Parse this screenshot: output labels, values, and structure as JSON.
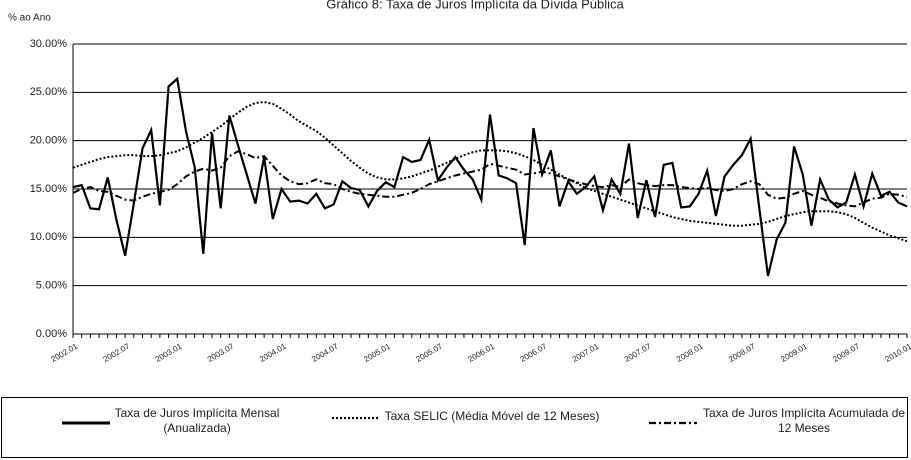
{
  "chart_data": {
    "type": "line",
    "title": "Gráfico 8: Taxa de Juros Implícita da Dívida Pública",
    "y_label": "% ao Ano",
    "categories": [
      "2002.01",
      null,
      null,
      null,
      null,
      null,
      "2002.07",
      null,
      null,
      null,
      null,
      null,
      "2003.01",
      null,
      null,
      null,
      null,
      null,
      "2003.07",
      null,
      null,
      null,
      null,
      null,
      "2004.01",
      null,
      null,
      null,
      null,
      null,
      "2004.07",
      null,
      null,
      null,
      null,
      null,
      "2005.01",
      null,
      null,
      null,
      null,
      null,
      "2005.07",
      null,
      null,
      null,
      null,
      null,
      "2006.01",
      null,
      null,
      null,
      null,
      null,
      "2006.07",
      null,
      null,
      null,
      null,
      null,
      "2007.01",
      null,
      null,
      null,
      null,
      null,
      "2007.07",
      null,
      null,
      null,
      null,
      null,
      "2008.01",
      null,
      null,
      null,
      null,
      null,
      "2008.07",
      null,
      null,
      null,
      null,
      null,
      "2009.01",
      null,
      null,
      null,
      null,
      null,
      "2009.07",
      null,
      null,
      null,
      null,
      null,
      "2010.01"
    ],
    "series": [
      {
        "name": "Taxa de Juros Implícita Mensal (Anualizada)",
        "color": "#000000",
        "style": "solid",
        "values": [
          15.2,
          15.4,
          13.0,
          12.9,
          16.2,
          11.8,
          8.1,
          13.5,
          19.2,
          21.1,
          13.3,
          25.6,
          26.4,
          21.0,
          17.3,
          8.3,
          20.8,
          13.0,
          22.6,
          19.5,
          16.5,
          13.5,
          18.3,
          11.9,
          15.0,
          13.7,
          13.8,
          13.5,
          14.5,
          13.0,
          13.4,
          15.8,
          15.1,
          14.9,
          13.2,
          14.8,
          15.7,
          15.2,
          18.3,
          17.8,
          18.0,
          20.1,
          15.9,
          17.2,
          18.3,
          17.0,
          16.0,
          13.9,
          22.7,
          16.4,
          16.1,
          15.6,
          9.2,
          21.3,
          16.5,
          19.0,
          13.2,
          15.8,
          14.5,
          15.2,
          16.3,
          12.8,
          16.0,
          14.5,
          19.7,
          12.0,
          15.9,
          12.1,
          17.5,
          17.7,
          13.1,
          13.2,
          14.5,
          16.9,
          12.2,
          16.3,
          17.5,
          18.5,
          20.2,
          13.0,
          6.0,
          9.8,
          11.5,
          19.4,
          16.5,
          11.2,
          16.0,
          13.9,
          13.1,
          13.6,
          16.5,
          13.2,
          16.6,
          14.3,
          14.7,
          13.6,
          13.2
        ]
      },
      {
        "name": "Taxa SELIC (Média Móvel de 12 Meses)",
        "color": "#000000",
        "style": "dotted",
        "values": [
          17.2,
          17.5,
          17.8,
          18.1,
          18.3,
          18.4,
          18.5,
          18.5,
          18.4,
          18.4,
          18.5,
          18.7,
          18.9,
          19.3,
          19.8,
          20.3,
          20.9,
          21.5,
          22.2,
          22.9,
          23.5,
          23.9,
          24.0,
          23.8,
          23.3,
          22.7,
          22.0,
          21.5,
          21.0,
          20.3,
          19.5,
          18.7,
          17.9,
          17.2,
          16.6,
          16.2,
          16.0,
          16.0,
          16.1,
          16.3,
          16.6,
          16.9,
          17.3,
          17.7,
          18.1,
          18.5,
          18.8,
          19.0,
          19.0,
          19.0,
          18.9,
          18.7,
          18.4,
          18.0,
          17.5,
          17.0,
          16.5,
          16.0,
          15.6,
          15.1,
          14.8,
          14.5,
          14.2,
          13.9,
          13.6,
          13.3,
          13.0,
          12.7,
          12.4,
          12.1,
          11.9,
          11.7,
          11.6,
          11.5,
          11.4,
          11.3,
          11.2,
          11.2,
          11.3,
          11.4,
          11.6,
          11.9,
          12.2,
          12.4,
          12.6,
          12.7,
          12.7,
          12.7,
          12.6,
          12.4,
          12.0,
          11.5,
          11.0,
          10.6,
          10.2,
          9.9,
          9.6
        ]
      },
      {
        "name": "Taxa de Juros Implícita Acumulada de 12 Meses",
        "color": "#000000",
        "style": "dashdot",
        "values": [
          14.6,
          15.0,
          15.2,
          14.8,
          14.7,
          14.3,
          13.9,
          13.8,
          14.2,
          14.5,
          14.7,
          14.9,
          15.5,
          16.3,
          16.8,
          17.1,
          16.9,
          17.2,
          18.4,
          18.9,
          18.6,
          18.2,
          18.4,
          17.4,
          16.4,
          15.8,
          15.5,
          15.6,
          16.0,
          15.6,
          15.5,
          15.0,
          14.7,
          14.5,
          14.4,
          14.3,
          14.2,
          14.2,
          14.4,
          14.6,
          15.0,
          15.5,
          15.8,
          16.1,
          16.4,
          16.6,
          16.8,
          17.0,
          17.6,
          17.4,
          17.2,
          17.0,
          16.5,
          16.6,
          16.8,
          16.6,
          16.3,
          16.0,
          15.7,
          15.5,
          15.3,
          15.2,
          15.4,
          15.2,
          16.0,
          15.6,
          15.4,
          15.3,
          15.4,
          15.4,
          15.2,
          15.1,
          15.0,
          15.1,
          14.9,
          14.8,
          15.0,
          15.5,
          15.8,
          15.5,
          14.4,
          14.0,
          14.1,
          14.5,
          14.8,
          14.4,
          14.1,
          13.7,
          13.5,
          13.3,
          13.2,
          13.6,
          14.0,
          14.1,
          14.5,
          14.4,
          14.2
        ]
      }
    ],
    "ylim": [
      0,
      30
    ],
    "yticks": [
      {
        "value": 0,
        "label": "0.00%"
      },
      {
        "value": 5,
        "label": "5.00%"
      },
      {
        "value": 10,
        "label": "10.00%"
      },
      {
        "value": 15,
        "label": "15.00%"
      },
      {
        "value": 20,
        "label": "20.00%"
      },
      {
        "value": 25,
        "label": "25.00%"
      },
      {
        "value": 30,
        "label": "30.00%"
      }
    ],
    "grid": true,
    "legend": "bottom"
  }
}
